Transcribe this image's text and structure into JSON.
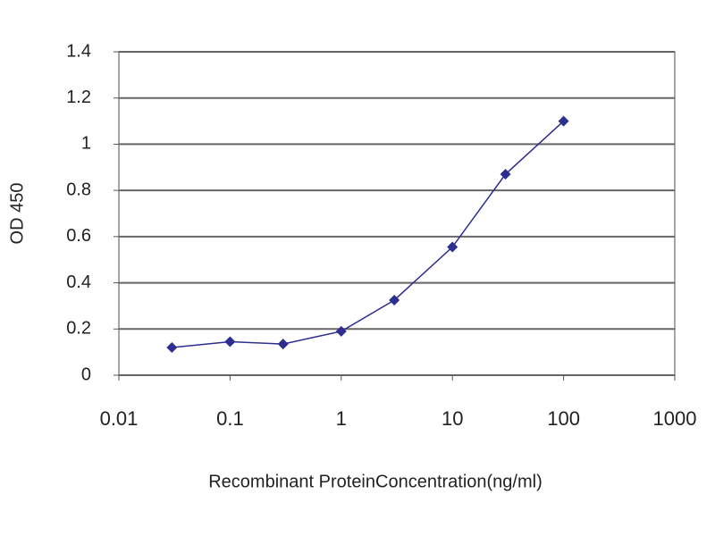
{
  "chart_data": {
    "type": "line",
    "xlabel": "Recombinant ProteinConcentration(ng/ml)",
    "ylabel": "OD 450",
    "x": [
      0.03,
      0.1,
      0.3,
      1,
      3,
      10,
      30,
      100
    ],
    "series": [
      {
        "name": "OD 450",
        "color": "#2e2e8f",
        "values": [
          0.12,
          0.145,
          0.135,
          0.19,
          0.325,
          0.555,
          0.87,
          1.1
        ]
      }
    ],
    "xlim": [
      0.01,
      1000
    ],
    "xticks": [
      0.01,
      0.1,
      1,
      10,
      100,
      1000
    ],
    "xscale": "log",
    "ylim": [
      0,
      1.4
    ],
    "yticks": [
      0,
      0.2,
      0.4,
      0.6,
      0.8,
      1,
      1.2,
      1.4
    ],
    "grid": true
  }
}
